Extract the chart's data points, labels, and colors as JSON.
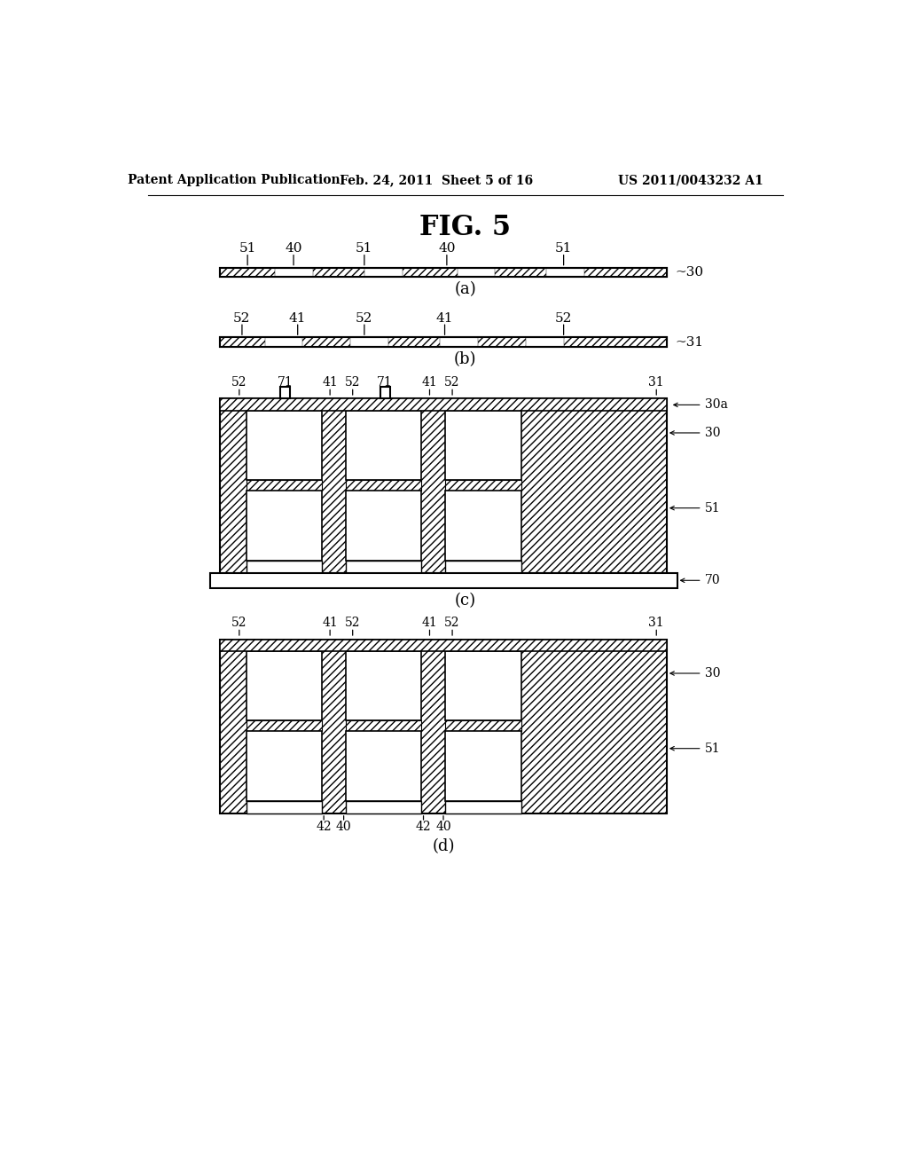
{
  "title": "FIG. 5",
  "header_left": "Patent Application Publication",
  "header_center": "Feb. 24, 2011  Sheet 5 of 16",
  "header_right": "US 2011/0043232 A1",
  "bg_color": "#ffffff"
}
